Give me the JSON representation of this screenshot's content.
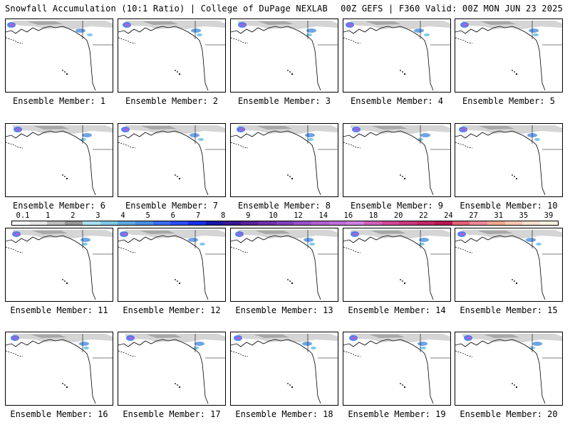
{
  "header": {
    "left": "Snowfall Accumulation (10:1 Ratio) | College of DuPage NEXLAB",
    "right": "00Z GEFS | F360 Valid: 00Z MON JUN 23 2025"
  },
  "members": [
    {
      "caption": "Ensemble Member: 1"
    },
    {
      "caption": "Ensemble Member: 2"
    },
    {
      "caption": "Ensemble Member: 3"
    },
    {
      "caption": "Ensemble Member: 4"
    },
    {
      "caption": "Ensemble Member: 5"
    },
    {
      "caption": "Ensemble Member: 6"
    },
    {
      "caption": "Ensemble Member: 7"
    },
    {
      "caption": "Ensemble Member: 8"
    },
    {
      "caption": "Ensemble Member: 9"
    },
    {
      "caption": "Ensemble Member: 10"
    },
    {
      "caption": "Ensemble Member: 11"
    },
    {
      "caption": "Ensemble Member: 12"
    },
    {
      "caption": "Ensemble Member: 13"
    },
    {
      "caption": "Ensemble Member: 14"
    },
    {
      "caption": "Ensemble Member: 15"
    },
    {
      "caption": "Ensemble Member: 16"
    },
    {
      "caption": "Ensemble Member: 17"
    },
    {
      "caption": "Ensemble Member: 18"
    },
    {
      "caption": "Ensemble Member: 19"
    },
    {
      "caption": "Ensemble Member: 20"
    }
  ],
  "colorbar": {
    "labels": [
      "0.1",
      "1",
      "2",
      "3",
      "4",
      "5",
      "6",
      "7",
      "8",
      "9",
      "10",
      "12",
      "14",
      "16",
      "18",
      "20",
      "22",
      "24",
      "27",
      "31",
      "35",
      "39"
    ],
    "colors": [
      "#ffffff",
      "#e6e6e6",
      "#bdbdbd",
      "#969696",
      "#a8e0f0",
      "#7fc8e8",
      "#5fa8e0",
      "#4a8ee0",
      "#3a6cf0",
      "#2a4ef8",
      "#1a2ee8",
      "#1818a8",
      "#3a1890",
      "#5a2098",
      "#7030a8",
      "#8040b8",
      "#9a50c8",
      "#b060d0",
      "#c070d8",
      "#d080e0",
      "#d060b8",
      "#d04898",
      "#c83880",
      "#c02868",
      "#b81850",
      "#e06078",
      "#f08898",
      "#f4a890",
      "#f8c8b0",
      "#fbe0cc",
      "#fdf0e0"
    ]
  }
}
